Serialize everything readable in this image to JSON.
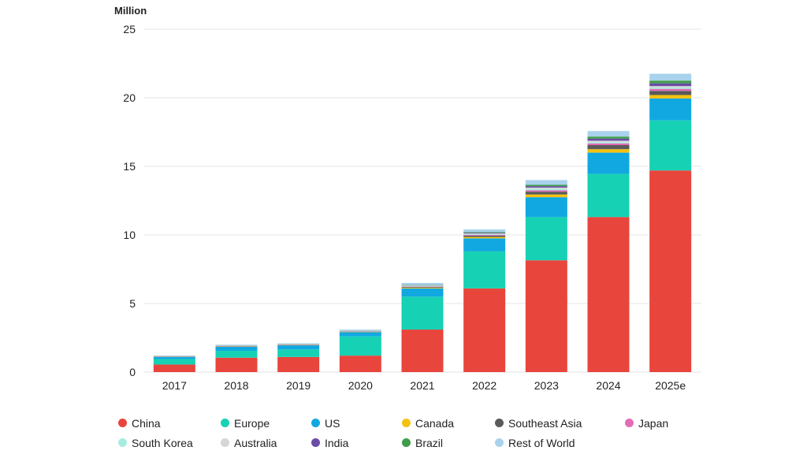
{
  "chart_data": {
    "type": "bar",
    "stacked": true,
    "unit_label": "Million",
    "categories": [
      "2017",
      "2018",
      "2019",
      "2020",
      "2021",
      "2022",
      "2023",
      "2024",
      "2025e"
    ],
    "ylim": [
      0,
      25
    ],
    "yticks": [
      0,
      5,
      10,
      15,
      20,
      25
    ],
    "grid": true,
    "legend_position": "bottom",
    "series": [
      {
        "name": "China",
        "color": "#e8453c",
        "values": [
          0.55,
          1.05,
          1.1,
          1.2,
          3.1,
          6.1,
          8.15,
          11.3,
          14.7
        ]
      },
      {
        "name": "Europe",
        "color": "#17d1b4",
        "values": [
          0.4,
          0.5,
          0.55,
          1.4,
          2.4,
          2.7,
          3.15,
          3.15,
          3.65
        ]
      },
      {
        "name": "US",
        "color": "#11a8e1",
        "values": [
          0.15,
          0.3,
          0.3,
          0.3,
          0.6,
          0.95,
          1.45,
          1.55,
          1.6
        ]
      },
      {
        "name": "Canada",
        "color": "#f5c211",
        "values": [
          0.01,
          0.02,
          0.02,
          0.02,
          0.05,
          0.1,
          0.2,
          0.25,
          0.25
        ]
      },
      {
        "name": "Southeast Asia",
        "color": "#5a5a5a",
        "values": [
          0.01,
          0.02,
          0.02,
          0.03,
          0.05,
          0.1,
          0.2,
          0.3,
          0.3
        ]
      },
      {
        "name": "Japan",
        "color": "#e36cb6",
        "values": [
          0.02,
          0.02,
          0.02,
          0.02,
          0.03,
          0.05,
          0.1,
          0.12,
          0.15
        ]
      },
      {
        "name": "South Korea",
        "color": "#a8ece1",
        "values": [
          0.01,
          0.02,
          0.02,
          0.04,
          0.05,
          0.05,
          0.1,
          0.1,
          0.1
        ]
      },
      {
        "name": "Australia",
        "color": "#d6d6d6",
        "values": [
          0.01,
          0.01,
          0.01,
          0.02,
          0.03,
          0.05,
          0.1,
          0.1,
          0.1
        ]
      },
      {
        "name": "India",
        "color": "#6b4ca6",
        "values": [
          0.01,
          0.01,
          0.01,
          0.01,
          0.02,
          0.05,
          0.1,
          0.15,
          0.2
        ]
      },
      {
        "name": "Brazil",
        "color": "#3f9c4a",
        "values": [
          0.01,
          0.01,
          0.01,
          0.01,
          0.02,
          0.05,
          0.1,
          0.15,
          0.2
        ]
      },
      {
        "name": "Rest of World",
        "color": "#a9d2ec",
        "values": [
          0.02,
          0.04,
          0.04,
          0.05,
          0.15,
          0.2,
          0.35,
          0.4,
          0.5
        ]
      }
    ]
  },
  "legend_rows": [
    [
      "China",
      "Europe",
      "US",
      "Canada",
      "Southeast Asia",
      "Japan"
    ],
    [
      "South Korea",
      "Australia",
      "India",
      "Brazil",
      "Rest of World"
    ]
  ]
}
